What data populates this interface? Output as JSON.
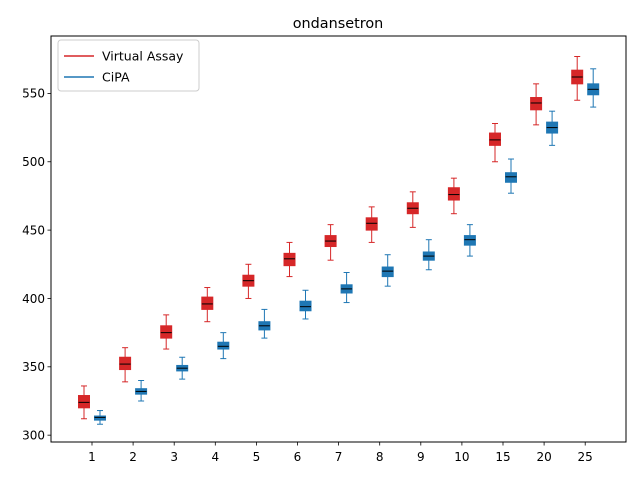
{
  "chart_data": {
    "type": "box",
    "title": "ondansetron",
    "xlabel": "",
    "ylabel": "",
    "categories": [
      "1",
      "2",
      "3",
      "4",
      "5",
      "6",
      "7",
      "8",
      "9",
      "10",
      "15",
      "20",
      "25"
    ],
    "ylim": [
      295,
      592
    ],
    "yticks": [
      300,
      350,
      400,
      450,
      500,
      550
    ],
    "grid": false,
    "legend_position": "top-left",
    "series": [
      {
        "name": "Virtual Assay",
        "color": "#d62728",
        "boxes": [
          {
            "whisker_low": 312,
            "q1": 320,
            "median": 324,
            "q3": 329,
            "whisker_high": 336
          },
          {
            "whisker_low": 339,
            "q1": 348,
            "median": 352,
            "q3": 357,
            "whisker_high": 364
          },
          {
            "whisker_low": 363,
            "q1": 371,
            "median": 375,
            "q3": 380,
            "whisker_high": 388
          },
          {
            "whisker_low": 383,
            "q1": 392,
            "median": 396,
            "q3": 401,
            "whisker_high": 408
          },
          {
            "whisker_low": 400,
            "q1": 409,
            "median": 413,
            "q3": 417,
            "whisker_high": 425
          },
          {
            "whisker_low": 416,
            "q1": 424,
            "median": 429,
            "q3": 433,
            "whisker_high": 441
          },
          {
            "whisker_low": 428,
            "q1": 438,
            "median": 442,
            "q3": 446,
            "whisker_high": 454
          },
          {
            "whisker_low": 441,
            "q1": 450,
            "median": 455,
            "q3": 459,
            "whisker_high": 467
          },
          {
            "whisker_low": 452,
            "q1": 462,
            "median": 466,
            "q3": 470,
            "whisker_high": 478
          },
          {
            "whisker_low": 462,
            "q1": 472,
            "median": 476,
            "q3": 481,
            "whisker_high": 488
          },
          {
            "whisker_low": 500,
            "q1": 512,
            "median": 516,
            "q3": 521,
            "whisker_high": 528
          },
          {
            "whisker_low": 527,
            "q1": 538,
            "median": 543,
            "q3": 547,
            "whisker_high": 557
          },
          {
            "whisker_low": 545,
            "q1": 557,
            "median": 562,
            "q3": 567,
            "whisker_high": 577
          }
        ]
      },
      {
        "name": "CiPA",
        "color": "#1f77b4",
        "boxes": [
          {
            "whisker_low": 308,
            "q1": 311,
            "median": 313,
            "q3": 314,
            "whisker_high": 318
          },
          {
            "whisker_low": 325,
            "q1": 330,
            "median": 332,
            "q3": 334,
            "whisker_high": 340
          },
          {
            "whisker_low": 341,
            "q1": 347,
            "median": 349,
            "q3": 351,
            "whisker_high": 357
          },
          {
            "whisker_low": 356,
            "q1": 363,
            "median": 365,
            "q3": 368,
            "whisker_high": 375
          },
          {
            "whisker_low": 371,
            "q1": 377,
            "median": 380,
            "q3": 383,
            "whisker_high": 392
          },
          {
            "whisker_low": 385,
            "q1": 391,
            "median": 394,
            "q3": 398,
            "whisker_high": 406
          },
          {
            "whisker_low": 397,
            "q1": 404,
            "median": 407,
            "q3": 410,
            "whisker_high": 419
          },
          {
            "whisker_low": 409,
            "q1": 416,
            "median": 420,
            "q3": 423,
            "whisker_high": 432
          },
          {
            "whisker_low": 421,
            "q1": 428,
            "median": 431,
            "q3": 434,
            "whisker_high": 443
          },
          {
            "whisker_low": 431,
            "q1": 439,
            "median": 443,
            "q3": 446,
            "whisker_high": 454
          },
          {
            "whisker_low": 477,
            "q1": 485,
            "median": 489,
            "q3": 492,
            "whisker_high": 502
          },
          {
            "whisker_low": 512,
            "q1": 521,
            "median": 525,
            "q3": 529,
            "whisker_high": 537
          },
          {
            "whisker_low": 540,
            "q1": 549,
            "median": 553,
            "q3": 557,
            "whisker_high": 568
          }
        ]
      }
    ]
  }
}
